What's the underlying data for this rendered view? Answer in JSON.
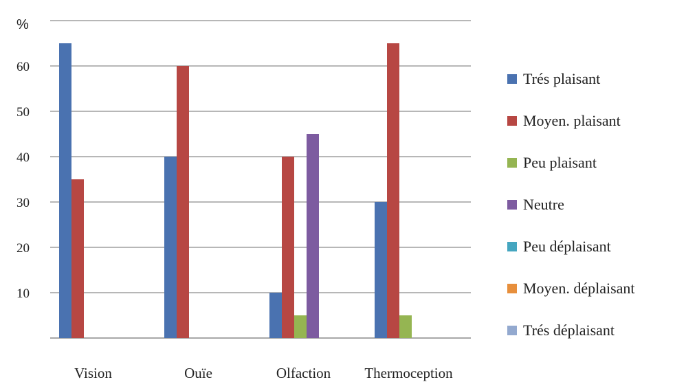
{
  "chart_data": {
    "type": "bar",
    "ylabel": "%",
    "ylim": [
      0,
      70
    ],
    "yticks": [
      10,
      20,
      30,
      40,
      50,
      60
    ],
    "grid": true,
    "legend_position": "right",
    "categories": [
      "Vision",
      "Ouïe",
      "Olfaction",
      "Thermoception"
    ],
    "series": [
      {
        "name": "Trés plaisant",
        "color": "#4a72b0",
        "values": [
          65,
          40,
          10,
          30
        ]
      },
      {
        "name": "Moyen. plaisant",
        "color": "#b74743",
        "values": [
          35,
          60,
          40,
          65
        ]
      },
      {
        "name": "Peu plaisant",
        "color": "#95b552",
        "values": [
          0,
          0,
          5,
          5
        ]
      },
      {
        "name": "Neutre",
        "color": "#7d5ba0",
        "values": [
          0,
          0,
          45,
          0
        ]
      },
      {
        "name": "Peu déplaisant",
        "color": "#45a6c0",
        "values": [
          0,
          0,
          0,
          0
        ]
      },
      {
        "name": "Moyen. déplaisant",
        "color": "#e78f3c",
        "values": [
          0,
          0,
          0,
          0
        ]
      },
      {
        "name": "Trés déplaisant",
        "color": "#93a9cf",
        "values": [
          0,
          0,
          0,
          0
        ]
      }
    ]
  }
}
